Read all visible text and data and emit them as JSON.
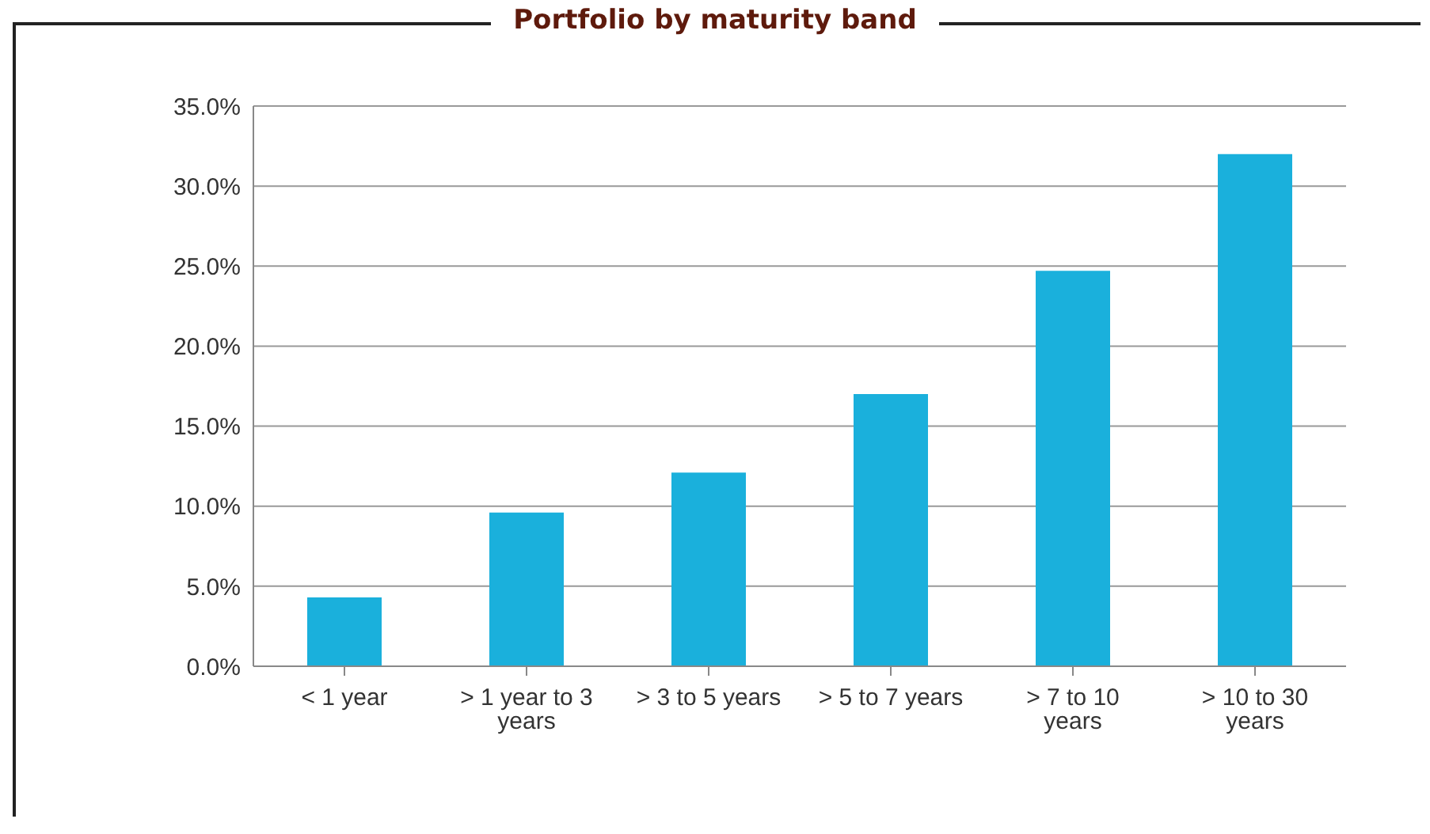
{
  "chart_data": {
    "type": "bar",
    "title": "Portfolio by maturity band",
    "categories": [
      "< 1 year",
      "> 1 year to 3 years",
      "> 3 to 5 years",
      "> 5 to 7 years",
      "> 7 to 10 years",
      "> 10 to 30 years"
    ],
    "values": [
      4.3,
      9.6,
      12.1,
      17.0,
      24.7,
      32.0
    ],
    "color": "#1ab0dc",
    "ylim": [
      0,
      35
    ],
    "yticks": [
      {
        "value": 0,
        "label": "0.0%"
      },
      {
        "value": 5,
        "label": "5.0%"
      },
      {
        "value": 10,
        "label": "10.0%"
      },
      {
        "value": 15,
        "label": "15.0%"
      },
      {
        "value": 20,
        "label": "20.0%"
      },
      {
        "value": 25,
        "label": "25.0%"
      },
      {
        "value": 30,
        "label": "30.0%"
      },
      {
        "value": 35,
        "label": "35.0%"
      }
    ],
    "grid": "y"
  }
}
